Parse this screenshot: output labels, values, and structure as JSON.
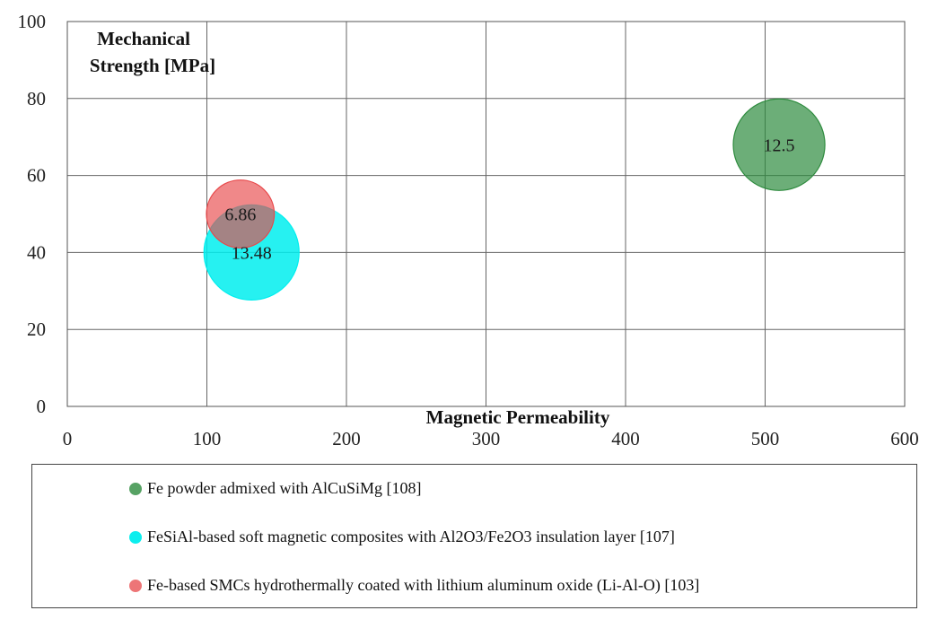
{
  "chart_data": {
    "type": "bubble",
    "xlabel": "Magnetic Permeability",
    "ylabel_line1": "Mechanical",
    "ylabel_line2": "Strength [MPa]",
    "xlim": [
      0,
      600
    ],
    "ylim": [
      0,
      100
    ],
    "xticks": [
      "0",
      "100",
      "200",
      "300",
      "400",
      "500",
      "600"
    ],
    "yticks": [
      "0",
      "20",
      "40",
      "60",
      "80",
      "100"
    ],
    "grid": true,
    "legend_position": "bottom",
    "series": [
      {
        "name": "Fe powder admixed with AlCuSiMg [108]",
        "x": 510,
        "y": 68,
        "size": 12.5,
        "label": "12.5",
        "color": "#2e8b3e",
        "fill_opacity": 0.7
      },
      {
        "name": "FeSiAl-based soft magnetic composites with Al2O3/Fe2O3 insulation layer [107]",
        "x": 132,
        "y": 40,
        "size": 13.48,
        "label": "13.48",
        "color": "#00eeee",
        "fill_opacity": 0.85
      },
      {
        "name": "Fe-based SMCs hydrothermally coated with lithium aluminum oxide (Li-Al-O) [103]",
        "x": 124,
        "y": 50,
        "size": 6.86,
        "label": "6.86",
        "color": "#e8484a",
        "fill_opacity": 0.65
      }
    ]
  }
}
